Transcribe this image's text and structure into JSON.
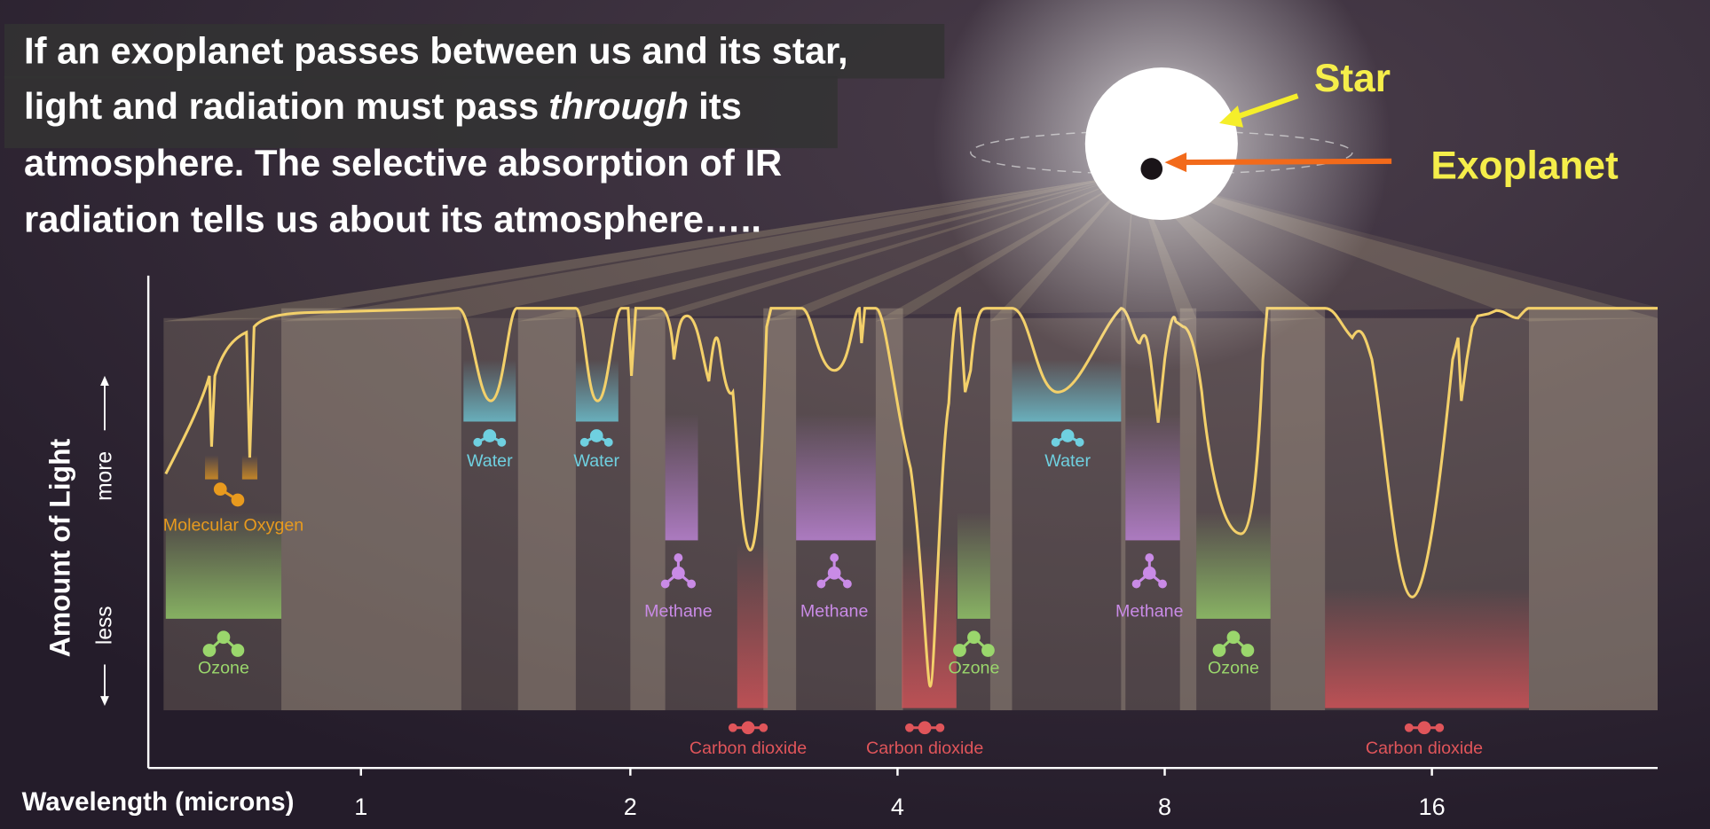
{
  "caption": {
    "line_1": "If an exoplanet passes between us and its star,",
    "line_2": "light and radiation must pass",
    "line_2_emphasis": "through",
    "line_2_end": "its",
    "line_3": "atmosphere. The selective absorption of IR",
    "line_4": "radiation tells us about its atmosphere….."
  },
  "labels": {
    "star": "Star",
    "exoplanet": "Exoplanet"
  },
  "y_axis": {
    "title": "Amount of Light",
    "more": "more",
    "less": "less"
  },
  "x_axis": {
    "title": "Wavelength (microns)",
    "ticks": [
      "1",
      "2",
      "4",
      "8",
      "16"
    ]
  },
  "absorbers": [
    {
      "label": "Molecular Oxygen"
    },
    {
      "label": "Ozone"
    },
    {
      "label": "Water"
    },
    {
      "label": "Water"
    },
    {
      "label": "Methane"
    },
    {
      "label": "Carbon dioxide"
    },
    {
      "label": "Methane"
    },
    {
      "label": "Carbon dioxide"
    },
    {
      "label": "Ozone"
    },
    {
      "label": "Water"
    },
    {
      "label": "Methane"
    },
    {
      "label": "Ozone"
    },
    {
      "label": "Carbon dioxide"
    }
  ]
}
